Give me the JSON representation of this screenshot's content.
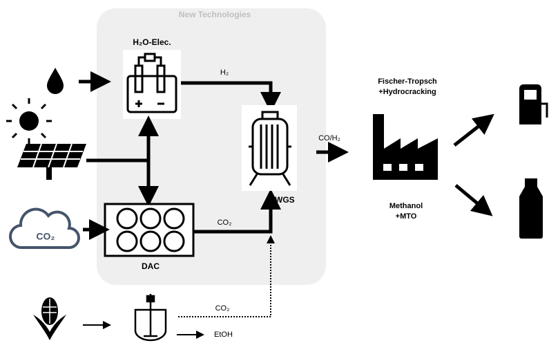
{
  "group": {
    "title": "New Technologies"
  },
  "nodes": [
    {
      "label": "H₂O-Elec."
    },
    {
      "label": "DAC"
    },
    {
      "label": "rWGS"
    },
    {
      "label": "CO₂"
    }
  ],
  "edges": [
    {
      "label": "H₂"
    },
    {
      "label": "CO₂"
    },
    {
      "label": "CO/H₂"
    },
    {
      "label": "CO₂"
    },
    {
      "label": "EtOH"
    }
  ],
  "processes": [
    {
      "lines": [
        "Fischer-Tropsch",
        "+Hydrocracking"
      ]
    },
    {
      "lines": [
        "Methanol",
        "+MTO"
      ]
    }
  ]
}
